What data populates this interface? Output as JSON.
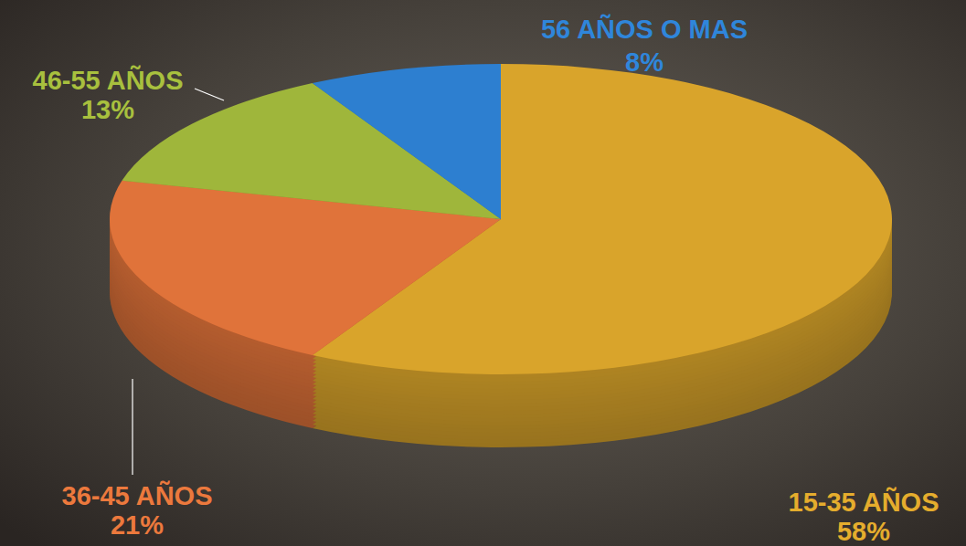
{
  "chart_data": {
    "type": "pie",
    "categories": [
      "15-35 AÑOS",
      "36-45 AÑOS",
      "46-55 AÑOS",
      "56 AÑOS O MAS"
    ],
    "values": [
      58,
      21,
      13,
      8
    ],
    "value_labels": [
      "58%",
      "21%",
      "13%",
      "8%"
    ],
    "colors": [
      "#d9a42b",
      "#e0733a",
      "#9fb63b",
      "#2d7fd0"
    ],
    "data_labels": true
  }
}
